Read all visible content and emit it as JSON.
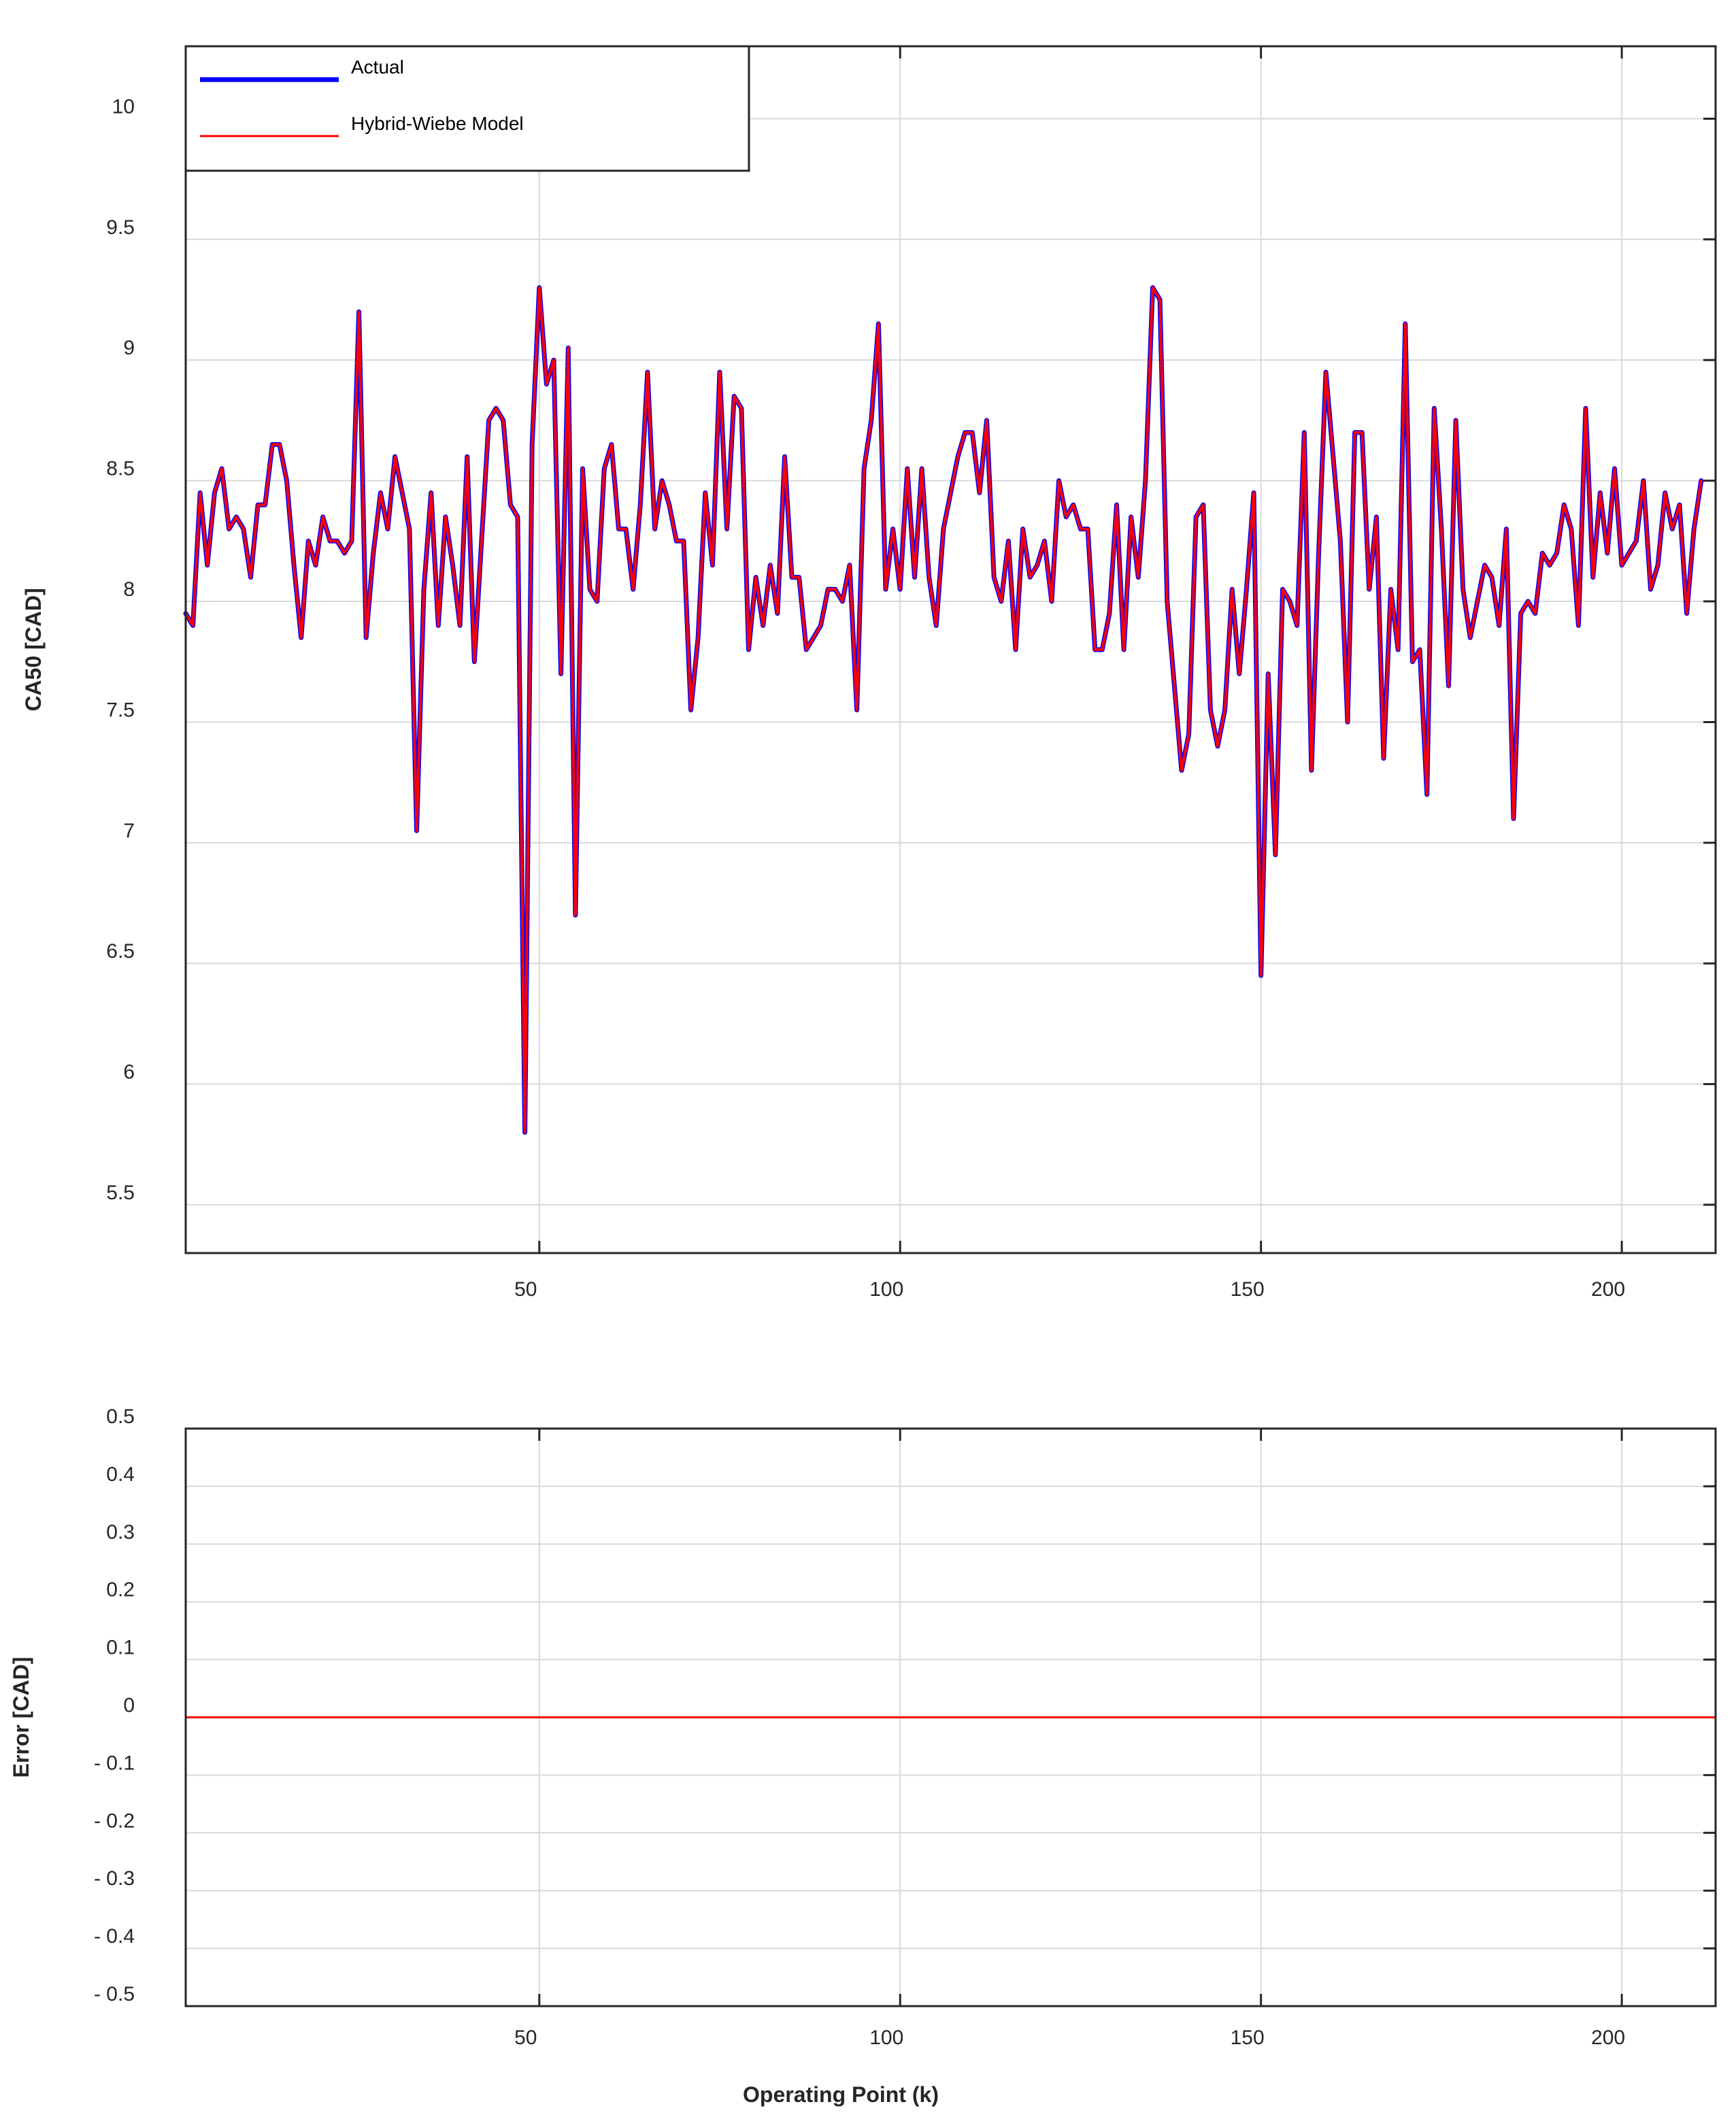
{
  "chart_data": [
    {
      "type": "line",
      "xlabel": "",
      "ylabel": "CA50 [CAD]",
      "xlim": [
        1,
        213
      ],
      "ylim": [
        5.3,
        10.3
      ],
      "xticks": [
        50,
        100,
        150,
        200
      ],
      "yticks": [
        5.5,
        6,
        6.5,
        7,
        7.5,
        8,
        8.5,
        9,
        9.5,
        10
      ],
      "ytick_labels": [
        "5.5",
        "6",
        "6.5",
        "7",
        "7.5",
        "8",
        "8.5",
        "9",
        "9.5",
        "10"
      ],
      "grid": true,
      "legend": "top-left",
      "series": [
        {
          "name": "Actual",
          "color": "#0000FF",
          "values": [
            7.95,
            7.9,
            8.45,
            8.15,
            8.45,
            8.55,
            8.3,
            8.35,
            8.3,
            8.1,
            8.4,
            8.4,
            8.65,
            8.65,
            8.5,
            8.15,
            7.85,
            8.25,
            8.15,
            8.35,
            8.25,
            8.25,
            8.2,
            8.25,
            9.2,
            7.85,
            8.2,
            8.45,
            8.3,
            8.6,
            8.45,
            8.3,
            7.05,
            8.05,
            8.45,
            7.9,
            8.35,
            8.15,
            7.9,
            8.6,
            7.75,
            8.25,
            8.75,
            8.8,
            8.75,
            8.4,
            8.35,
            5.8,
            8.65,
            9.3,
            8.9,
            9.0,
            7.7,
            9.05,
            6.7,
            8.55,
            8.05,
            8.0,
            8.55,
            8.65,
            8.3,
            8.3,
            8.05,
            8.4,
            8.95,
            8.3,
            8.5,
            8.4,
            8.25,
            8.25,
            7.55,
            7.85,
            8.45,
            8.15,
            8.95,
            8.3,
            8.85,
            8.8,
            7.8,
            8.1,
            7.9,
            8.15,
            7.95,
            8.6,
            8.1,
            8.1,
            7.8,
            7.85,
            7.9,
            8.05,
            8.05,
            8.0,
            8.15,
            7.55,
            8.55,
            8.75,
            9.15,
            8.05,
            8.3,
            8.05,
            8.55,
            8.1,
            8.55,
            8.1,
            7.9,
            8.3,
            8.45,
            8.6,
            8.7,
            8.7,
            8.45,
            8.75,
            8.1,
            8.0,
            8.25,
            7.8,
            8.3,
            8.1,
            8.15,
            8.25,
            8.0,
            8.5,
            8.35,
            8.4,
            8.3,
            8.3,
            7.8,
            7.8,
            7.95,
            8.4,
            7.8,
            8.35,
            8.1,
            8.5,
            9.3,
            9.25,
            8.0,
            7.65,
            7.3,
            7.45,
            8.35,
            8.4,
            7.55,
            7.4,
            7.55,
            8.05,
            7.7,
            8.05,
            8.45,
            6.45,
            7.7,
            6.95,
            8.05,
            8.0,
            7.9,
            8.7,
            7.3,
            8.2,
            8.95,
            8.6,
            8.25,
            7.5,
            8.7,
            8.7,
            8.05,
            8.35,
            7.35,
            8.05,
            7.8,
            9.15,
            7.75,
            7.8,
            7.2,
            8.8,
            8.3,
            7.65,
            8.75,
            8.05,
            7.85,
            8.0,
            8.15,
            8.1,
            7.9,
            8.3,
            7.1,
            7.95,
            8.0,
            7.95,
            8.2,
            8.15,
            8.2,
            8.4,
            8.3,
            7.9,
            8.8,
            8.1,
            8.45,
            8.2,
            8.55,
            8.15,
            8.2,
            8.25,
            8.5,
            8.05,
            8.15,
            8.45,
            8.3,
            8.4,
            7.95,
            8.3,
            8.5
          ]
        },
        {
          "name": "Hybrid-Wiebe Model",
          "color": "#FF0000",
          "same_values_as": "Actual"
        }
      ]
    },
    {
      "type": "line",
      "xlabel": "Operating Point (k)",
      "ylabel": "Error [CAD]",
      "xlim": [
        1,
        213
      ],
      "ylim": [
        -0.5,
        0.5
      ],
      "xticks": [
        50,
        100,
        150,
        200
      ],
      "yticks": [
        -0.5,
        -0.4,
        -0.3,
        -0.2,
        -0.1,
        0,
        0.1,
        0.2,
        0.3,
        0.4,
        0.5
      ],
      "ytick_labels": [
        "- 0.5",
        "- 0.4",
        "- 0.3",
        "- 0.2",
        "- 0.1",
        "0",
        "0.1",
        "0.2",
        "0.3",
        "0.4",
        "0.5"
      ],
      "grid": true,
      "series": [
        {
          "color": "#FF0000",
          "constant_value": 0
        }
      ]
    }
  ]
}
